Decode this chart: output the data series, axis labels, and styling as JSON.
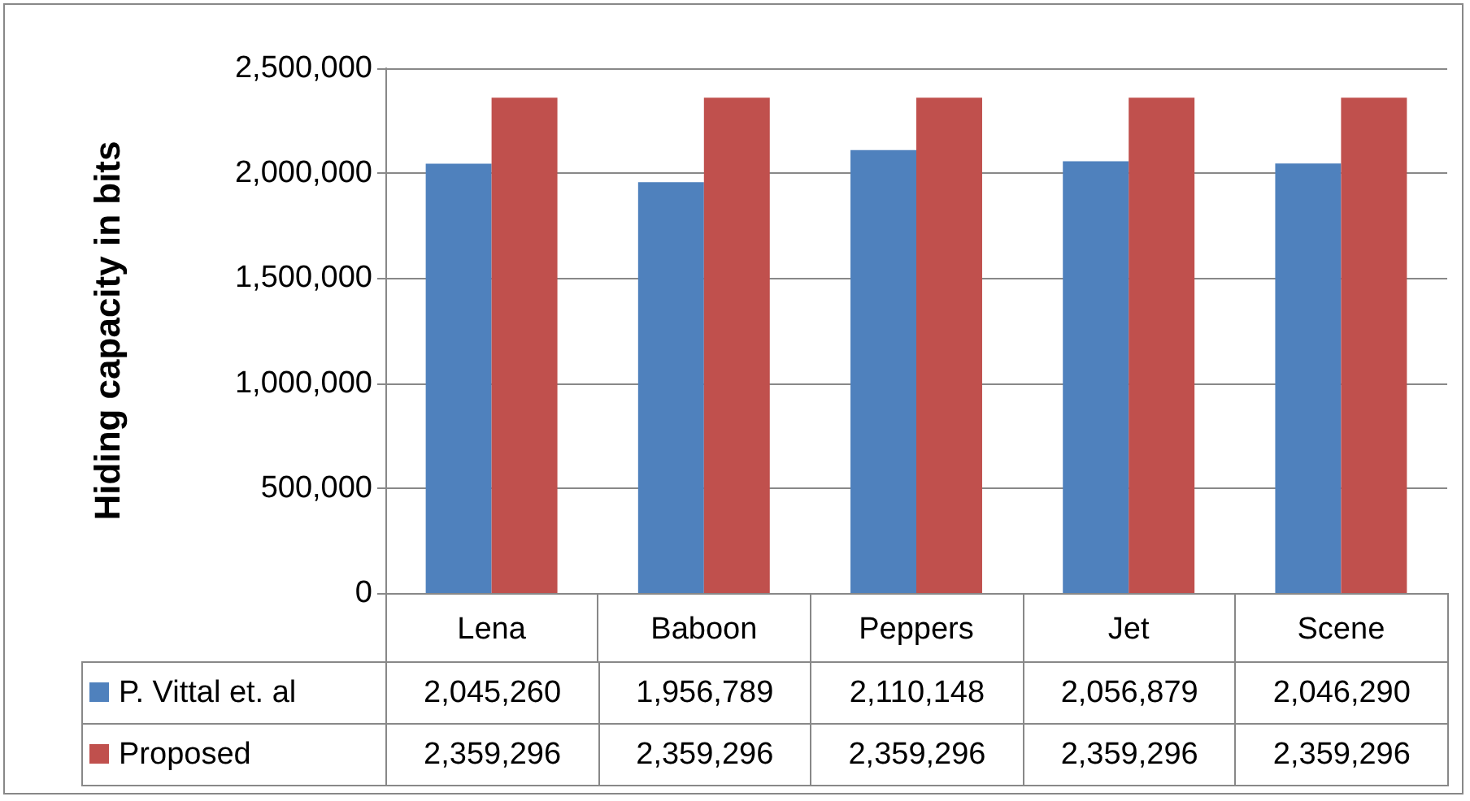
{
  "chart_data": {
    "type": "bar",
    "ylabel": "Hiding capacity in bits",
    "categories": [
      "Lena",
      "Baboon",
      "Peppers",
      "Jet",
      "Scene"
    ],
    "series": [
      {
        "name": "P. Vittal et. al",
        "color": "#4f81bd",
        "values": [
          2045260,
          1956789,
          2110148,
          2056879,
          2046290
        ],
        "value_labels": [
          "2,045,260",
          "1,956,789",
          "2,110,148",
          "2,056,879",
          "2,046,290"
        ]
      },
      {
        "name": "Proposed",
        "color": "#c0504d",
        "values": [
          2359296,
          2359296,
          2359296,
          2359296,
          2359296
        ],
        "value_labels": [
          "2,359,296",
          "2,359,296",
          "2,359,296",
          "2,359,296",
          "2,359,296"
        ]
      }
    ],
    "ylim": [
      0,
      2500000
    ],
    "yticks": [
      0,
      {
        "value": 500000,
        "label": "500,000"
      },
      {
        "value": 1000000,
        "label": "1,000,000"
      },
      {
        "value": 1500000,
        "label": "1,500,000"
      },
      {
        "value": 2000000,
        "label": "2,000,000"
      },
      {
        "value": 2500000,
        "label": "2,500,000"
      }
    ],
    "grid": "y",
    "legend": "bottom"
  }
}
